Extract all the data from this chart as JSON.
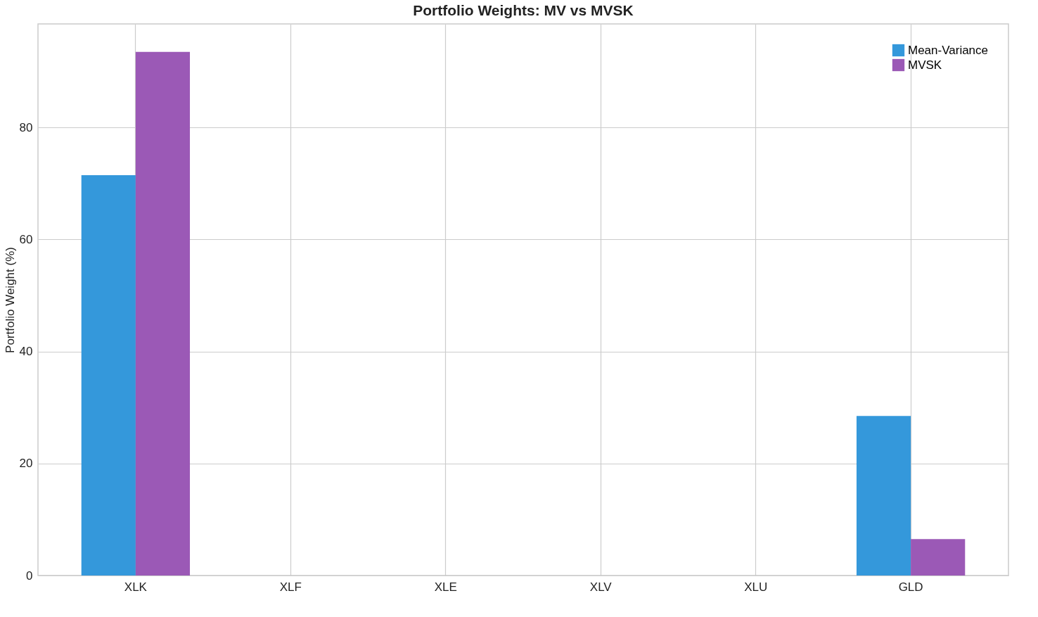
{
  "chart_data": {
    "type": "bar",
    "title": "Portfolio Weights: MV vs MVSK",
    "ylabel": "Portfolio Weight (%)",
    "categories": [
      "XLK",
      "XLF",
      "XLE",
      "XLV",
      "XLU",
      "GLD"
    ],
    "series": [
      {
        "name": "Mean-Variance",
        "color": "#3498db",
        "values": [
          71.5,
          0,
          0,
          0,
          0,
          28.5
        ]
      },
      {
        "name": "MVSK",
        "color": "#9b59b6",
        "values": [
          93.5,
          0,
          0,
          0,
          0,
          6.5
        ]
      }
    ],
    "ylim": [
      0,
      98.5
    ],
    "yticks": [
      0,
      20,
      40,
      60,
      80
    ],
    "grid": true,
    "legend": "top right"
  }
}
